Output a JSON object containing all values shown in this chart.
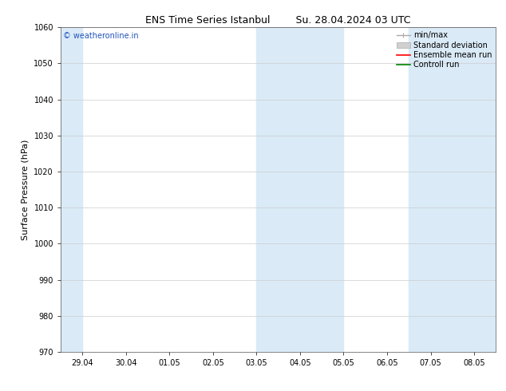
{
  "title": "ENS Time Series Istanbul        Su. 28.04.2024 03 UTC",
  "ylabel": "Surface Pressure (hPa)",
  "ylim": [
    970,
    1060
  ],
  "yticks": [
    970,
    980,
    990,
    1000,
    1010,
    1020,
    1030,
    1040,
    1050,
    1060
  ],
  "xtick_labels": [
    "29.04",
    "30.04",
    "01.05",
    "02.05",
    "03.05",
    "04.05",
    "05.05",
    "06.05",
    "07.05",
    "08.05"
  ],
  "xtick_positions": [
    0,
    1,
    2,
    3,
    4,
    5,
    6,
    7,
    8,
    9
  ],
  "xlim": [
    -0.5,
    9.5
  ],
  "shaded_ranges": [
    [
      -0.5,
      0.0
    ],
    [
      4.0,
      6.0
    ],
    [
      7.5,
      9.5
    ]
  ],
  "shade_color": "#daeaf7",
  "background_color": "#ffffff",
  "grid_color": "#cccccc",
  "copyright_text": "© weatheronline.in",
  "copyright_color": "#2255bb",
  "title_fontsize": 9,
  "label_fontsize": 8,
  "tick_fontsize": 7,
  "legend_fontsize": 7
}
